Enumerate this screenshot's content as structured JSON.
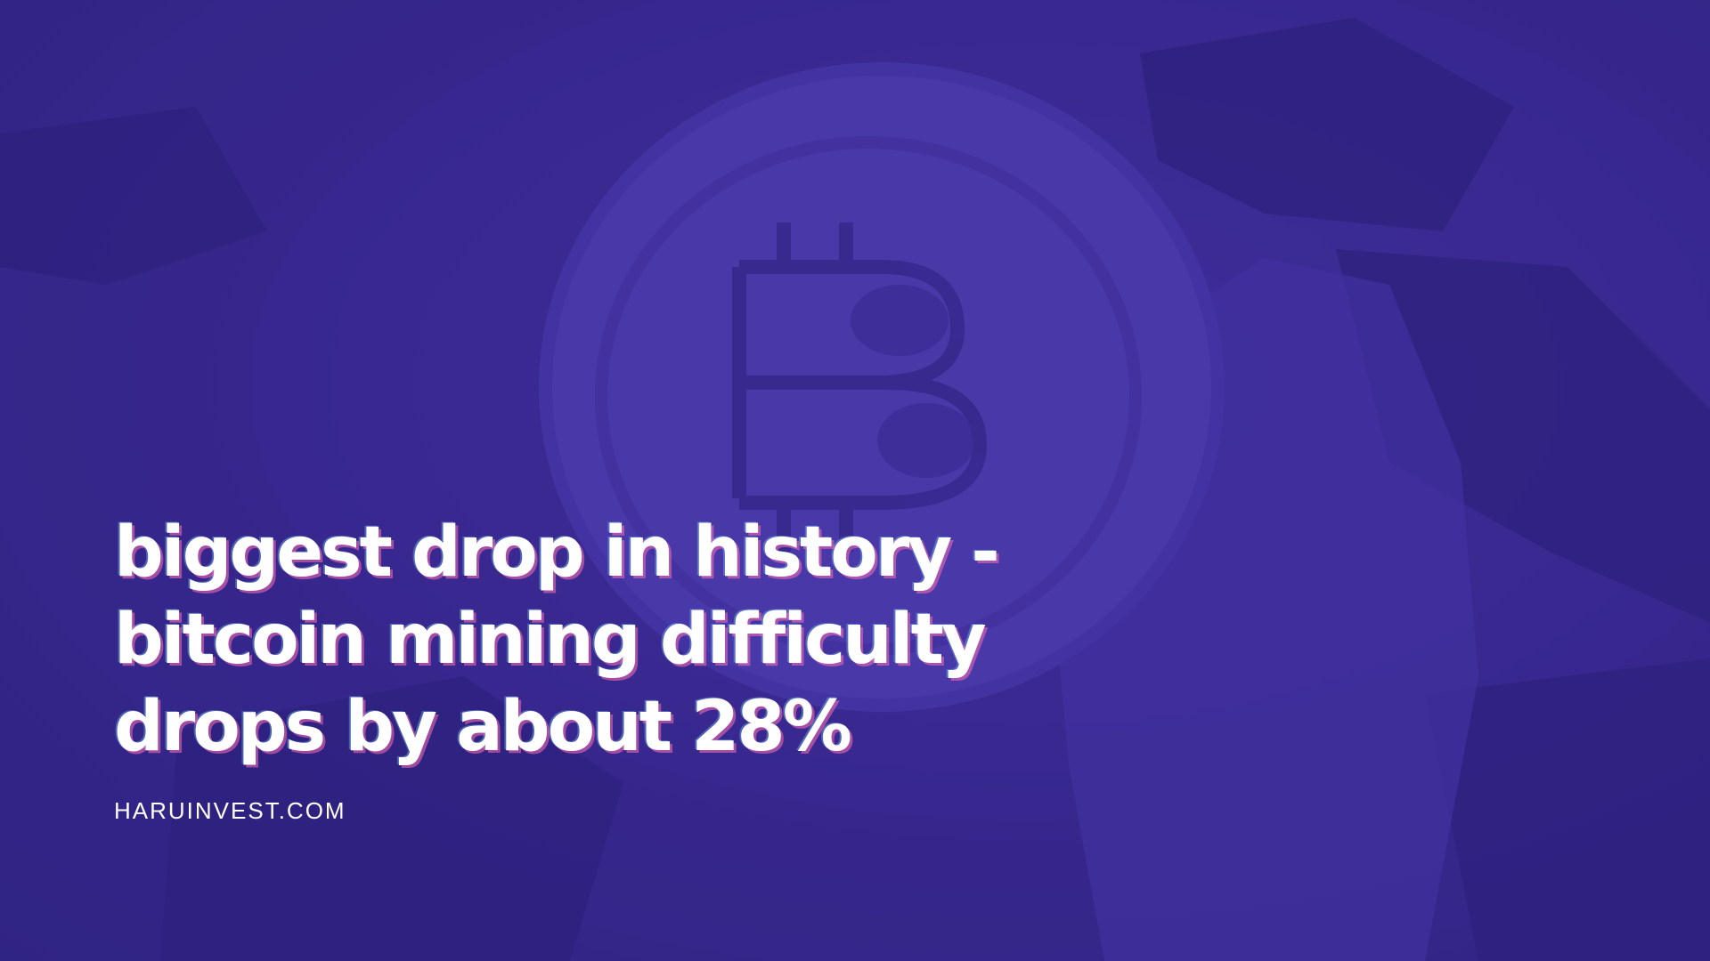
{
  "colors": {
    "background": "#3a2a8f",
    "text": "#ffffff",
    "coin_tint": "#5a4bb8"
  },
  "headline": {
    "line1": "biggest drop in history -",
    "line2": "bitcoin mining difficulty",
    "line3": "drops by about 28%"
  },
  "site": "HARUINVEST.COM"
}
